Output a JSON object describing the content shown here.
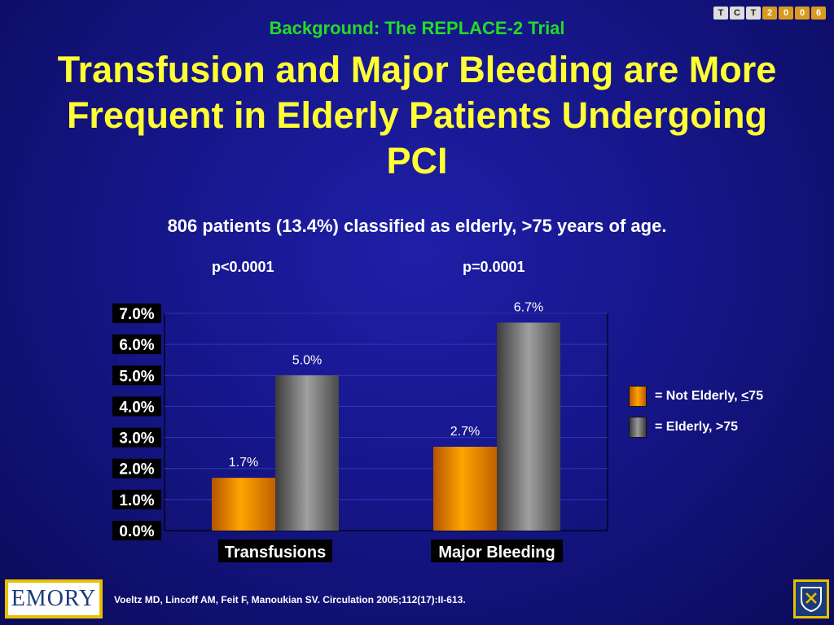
{
  "supertitle": "Background: The REPLACE-2 Trial",
  "title": "Transfusion and Major Bleeding are More Frequent in Elderly Patients Undergoing PCI",
  "subtitle": "806 patients (13.4%) classified as elderly, >75 years of age.",
  "pvalues": [
    "p<0.0001",
    "p=0.0001"
  ],
  "logo_tct": {
    "letters": [
      "T",
      "C",
      "T"
    ],
    "digits": [
      "2",
      "0",
      "0",
      "6"
    ]
  },
  "emory_logo_text": "EMORY",
  "citation": "Voeltz MD, Lincoff AM, Feit F, Manoukian SV. Circulation 2005;112(17):II-613.",
  "colors": {
    "not_elderly": "#ff9900",
    "elderly": "#808080",
    "grid": "#2a3ab8",
    "title": "#ffff33",
    "supertitle": "#22dd22"
  },
  "legend": [
    {
      "prefix": "= Not Elderly, ",
      "underlined": "<",
      "suffix": "75"
    },
    {
      "prefix": "= Elderly, ",
      "underlined": "",
      "suffix": ">75"
    }
  ],
  "chart_data": {
    "type": "bar",
    "categories": [
      "Transfusions",
      "Major Bleeding"
    ],
    "series": [
      {
        "name": "= Not Elderly, <75",
        "values": [
          1.7,
          2.7
        ]
      },
      {
        "name": "= Elderly, >75",
        "values": [
          5.0,
          6.7
        ]
      }
    ],
    "data_labels": [
      [
        "1.7%",
        "2.7%"
      ],
      [
        "5.0%",
        "6.7%"
      ]
    ],
    "yticks": [
      "0.0%",
      "1.0%",
      "2.0%",
      "3.0%",
      "4.0%",
      "5.0%",
      "6.0%",
      "7.0%"
    ],
    "ylim": [
      0,
      7
    ],
    "grid": true,
    "legend_position": "right",
    "xlabel": "",
    "ylabel": ""
  }
}
